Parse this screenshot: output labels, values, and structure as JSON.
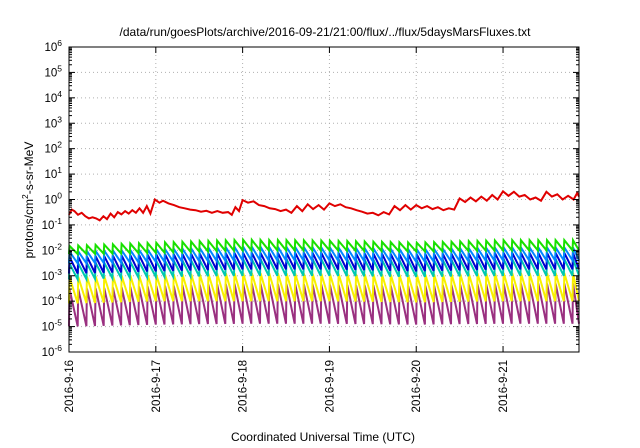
{
  "chart_data": {
    "type": "line",
    "title": "/data/run/goesPlots/archive/2016-09-21/21:00/flux/../flux/5daysMarsFluxes.txt",
    "xlabel": "Coordinated Universal Time (UTC)",
    "ylabel": {
      "base": "protons/cm",
      "sup": "2",
      "rest": "-s-sr-MeV"
    },
    "y_scale": "log",
    "ylim": [
      1e-06,
      1000000.0
    ],
    "y_ticks": [
      {
        "value": 1e-06,
        "base": "10",
        "exp": "-6"
      },
      {
        "value": 1e-05,
        "base": "10",
        "exp": "-5"
      },
      {
        "value": 0.0001,
        "base": "10",
        "exp": "-4"
      },
      {
        "value": 0.001,
        "base": "10",
        "exp": "-3"
      },
      {
        "value": 0.01,
        "base": "10",
        "exp": "-2"
      },
      {
        "value": 0.1,
        "base": "10",
        "exp": "-1"
      },
      {
        "value": 1,
        "base": "10",
        "exp": "0"
      },
      {
        "value": 10,
        "base": "10",
        "exp": "1"
      },
      {
        "value": 100,
        "base": "10",
        "exp": "2"
      },
      {
        "value": 1000,
        "base": "10",
        "exp": "3"
      },
      {
        "value": 10000,
        "base": "10",
        "exp": "4"
      },
      {
        "value": 100000,
        "base": "10",
        "exp": "5"
      },
      {
        "value": 1000000,
        "base": "10",
        "exp": "6"
      }
    ],
    "xlim": [
      "2016-9-16 00:00",
      "2016-9-21 21:00"
    ],
    "x_ticks": [
      "2016-9-16",
      "2016-9-17",
      "2016-9-18",
      "2016-9-19",
      "2016-9-20",
      "2016-9-21"
    ],
    "grid": true,
    "legend": "none",
    "series": [
      {
        "color": "#e00000",
        "points": [
          [
            "2016-9-16 00:00",
            0.25
          ],
          [
            "2016-9-16 00:45",
            0.4
          ],
          [
            "2016-9-16 01:30",
            0.35
          ],
          [
            "2016-9-16 02:30",
            0.25
          ],
          [
            "2016-9-16 03:30",
            0.3
          ],
          [
            "2016-9-16 04:30",
            0.22
          ],
          [
            "2016-9-16 05:30",
            0.18
          ],
          [
            "2016-9-16 06:30",
            0.2
          ],
          [
            "2016-9-16 07:30",
            0.18
          ],
          [
            "2016-9-16 08:30",
            0.15
          ],
          [
            "2016-9-16 09:30",
            0.22
          ],
          [
            "2016-9-16 10:30",
            0.17
          ],
          [
            "2016-9-16 11:30",
            0.28
          ],
          [
            "2016-9-16 12:30",
            0.2
          ],
          [
            "2016-9-16 13:30",
            0.32
          ],
          [
            "2016-9-16 14:30",
            0.26
          ],
          [
            "2016-9-16 15:30",
            0.35
          ],
          [
            "2016-9-16 16:30",
            0.28
          ],
          [
            "2016-9-16 17:30",
            0.38
          ],
          [
            "2016-9-16 18:30",
            0.3
          ],
          [
            "2016-9-16 19:30",
            0.45
          ],
          [
            "2016-9-16 20:30",
            0.3
          ],
          [
            "2016-9-16 21:30",
            0.55
          ],
          [
            "2016-9-16 22:30",
            0.28
          ],
          [
            "2016-9-16 23:45",
            1.0
          ],
          [
            "2016-9-17 01:00",
            0.75
          ],
          [
            "2016-9-17 02:00",
            0.9
          ],
          [
            "2016-9-17 03:30",
            0.7
          ],
          [
            "2016-9-17 05:00",
            0.6
          ],
          [
            "2016-9-17 06:30",
            0.5
          ],
          [
            "2016-9-17 08:00",
            0.45
          ],
          [
            "2016-9-17 09:30",
            0.4
          ],
          [
            "2016-9-17 11:00",
            0.38
          ],
          [
            "2016-9-17 12:30",
            0.33
          ],
          [
            "2016-9-17 14:00",
            0.36
          ],
          [
            "2016-9-17 15:30",
            0.3
          ],
          [
            "2016-9-17 17:00",
            0.35
          ],
          [
            "2016-9-17 18:30",
            0.3
          ],
          [
            "2016-9-17 20:00",
            0.32
          ],
          [
            "2016-9-17 21:00",
            0.25
          ],
          [
            "2016-9-17 22:00",
            0.5
          ],
          [
            "2016-9-17 23:00",
            0.35
          ],
          [
            "2016-9-18 00:00",
            0.95
          ],
          [
            "2016-9-18 01:30",
            0.75
          ],
          [
            "2016-9-18 03:00",
            0.85
          ],
          [
            "2016-9-18 04:30",
            0.6
          ],
          [
            "2016-9-18 06:00",
            0.55
          ],
          [
            "2016-9-18 07:30",
            0.45
          ],
          [
            "2016-9-18 09:00",
            0.42
          ],
          [
            "2016-9-18 10:30",
            0.35
          ],
          [
            "2016-9-18 12:00",
            0.4
          ],
          [
            "2016-9-18 13:30",
            0.3
          ],
          [
            "2016-9-18 15:00",
            0.55
          ],
          [
            "2016-9-18 16:30",
            0.35
          ],
          [
            "2016-9-18 18:00",
            0.65
          ],
          [
            "2016-9-18 19:30",
            0.42
          ],
          [
            "2016-9-18 21:00",
            0.6
          ],
          [
            "2016-9-18 22:30",
            0.4
          ],
          [
            "2016-9-19 00:00",
            0.7
          ],
          [
            "2016-9-19 01:30",
            0.55
          ],
          [
            "2016-9-19 03:00",
            0.65
          ],
          [
            "2016-9-19 04:30",
            0.5
          ],
          [
            "2016-9-19 06:00",
            0.45
          ],
          [
            "2016-9-19 07:30",
            0.38
          ],
          [
            "2016-9-19 09:00",
            0.33
          ],
          [
            "2016-9-19 10:30",
            0.28
          ],
          [
            "2016-9-19 12:00",
            0.3
          ],
          [
            "2016-9-19 13:30",
            0.24
          ],
          [
            "2016-9-19 15:00",
            0.32
          ],
          [
            "2016-9-19 16:30",
            0.26
          ],
          [
            "2016-9-19 18:00",
            0.55
          ],
          [
            "2016-9-19 19:30",
            0.38
          ],
          [
            "2016-9-19 21:00",
            0.6
          ],
          [
            "2016-9-19 22:30",
            0.4
          ],
          [
            "2016-9-20 00:00",
            0.6
          ],
          [
            "2016-9-20 01:30",
            0.45
          ],
          [
            "2016-9-20 03:00",
            0.55
          ],
          [
            "2016-9-20 04:30",
            0.42
          ],
          [
            "2016-9-20 06:00",
            0.5
          ],
          [
            "2016-9-20 07:30",
            0.38
          ],
          [
            "2016-9-20 09:00",
            0.45
          ],
          [
            "2016-9-20 10:30",
            0.4
          ],
          [
            "2016-9-20 12:00",
            1.1
          ],
          [
            "2016-9-20 13:30",
            0.8
          ],
          [
            "2016-9-20 15:00",
            1.2
          ],
          [
            "2016-9-20 16:30",
            0.85
          ],
          [
            "2016-9-20 18:00",
            1.3
          ],
          [
            "2016-9-20 19:30",
            0.9
          ],
          [
            "2016-9-20 21:00",
            1.5
          ],
          [
            "2016-9-20 22:30",
            1.0
          ],
          [
            "2016-9-21 00:00",
            2.1
          ],
          [
            "2016-9-21 01:30",
            1.4
          ],
          [
            "2016-9-21 03:00",
            2.0
          ],
          [
            "2016-9-21 04:30",
            1.3
          ],
          [
            "2016-9-21 06:00",
            1.5
          ],
          [
            "2016-9-21 07:30",
            1.0
          ],
          [
            "2016-9-21 09:00",
            1.2
          ],
          [
            "2016-9-21 10:30",
            0.9
          ],
          [
            "2016-9-21 12:00",
            2.0
          ],
          [
            "2016-9-21 13:30",
            1.3
          ],
          [
            "2016-9-21 15:00",
            1.6
          ],
          [
            "2016-9-21 16:30",
            1.0
          ],
          [
            "2016-9-21 18:00",
            1.4
          ],
          [
            "2016-9-21 19:30",
            1.0
          ],
          [
            "2016-9-21 20:30",
            1.8
          ],
          [
            "2016-9-21 21:00",
            1.3
          ]
        ]
      },
      {
        "color": "#18e000",
        "cycle_hours": 2.4,
        "points": [
          [
            "2016-9-16 00:00",
            0.015
          ],
          [
            "2016-9-17 00:00",
            0.02
          ],
          [
            "2016-9-18 00:00",
            0.026
          ],
          [
            "2016-9-19 00:00",
            0.024
          ],
          [
            "2016-9-20 00:00",
            0.02
          ],
          [
            "2016-9-21 00:00",
            0.025
          ],
          [
            "2016-9-21 21:00",
            0.025
          ]
        ],
        "troughs": [
          [
            "2016-9-16 00:00",
            0.007
          ],
          [
            "2016-9-17 00:00",
            0.008
          ],
          [
            "2016-9-18 00:00",
            0.01
          ],
          [
            "2016-9-19 00:00",
            0.01
          ],
          [
            "2016-9-20 00:00",
            0.009
          ],
          [
            "2016-9-21 00:00",
            0.01
          ],
          [
            "2016-9-21 21:00",
            0.01
          ]
        ]
      },
      {
        "color": "#0088ff",
        "cycle_hours": 2.4,
        "points": [
          [
            "2016-9-16 00:00",
            0.009
          ],
          [
            "2016-9-17 00:00",
            0.011
          ],
          [
            "2016-9-18 00:00",
            0.014
          ],
          [
            "2016-9-19 00:00",
            0.013
          ],
          [
            "2016-9-20 00:00",
            0.011
          ],
          [
            "2016-9-21 00:00",
            0.013
          ],
          [
            "2016-9-21 21:00",
            0.013
          ]
        ],
        "troughs": [
          [
            "2016-9-16 00:00",
            0.003
          ],
          [
            "2016-9-17 00:00",
            0.0035
          ],
          [
            "2016-9-18 00:00",
            0.004
          ],
          [
            "2016-9-19 00:00",
            0.004
          ],
          [
            "2016-9-20 00:00",
            0.0035
          ],
          [
            "2016-9-21 00:00",
            0.004
          ],
          [
            "2016-9-21 21:00",
            0.004
          ]
        ]
      },
      {
        "color": "#0000d0",
        "cycle_hours": 2.4,
        "points": [
          [
            "2016-9-16 00:00",
            0.0055
          ],
          [
            "2016-9-17 00:00",
            0.007
          ],
          [
            "2016-9-18 00:00",
            0.008
          ],
          [
            "2016-9-19 00:00",
            0.008
          ],
          [
            "2016-9-20 00:00",
            0.007
          ],
          [
            "2016-9-21 00:00",
            0.008
          ],
          [
            "2016-9-21 21:00",
            0.008
          ]
        ],
        "troughs": [
          [
            "2016-9-16 00:00",
            0.0012
          ],
          [
            "2016-9-17 00:00",
            0.0015
          ],
          [
            "2016-9-18 00:00",
            0.0018
          ],
          [
            "2016-9-19 00:00",
            0.0018
          ],
          [
            "2016-9-20 00:00",
            0.0015
          ],
          [
            "2016-9-21 00:00",
            0.0018
          ],
          [
            "2016-9-21 21:00",
            0.0018
          ]
        ]
      },
      {
        "color": "#00c8b0",
        "cycle_hours": 2.4,
        "points": [
          [
            "2016-9-16 00:00",
            0.003
          ],
          [
            "2016-9-17 00:00",
            0.0038
          ],
          [
            "2016-9-18 00:00",
            0.0045
          ],
          [
            "2016-9-19 00:00",
            0.0045
          ],
          [
            "2016-9-20 00:00",
            0.004
          ],
          [
            "2016-9-21 00:00",
            0.0045
          ],
          [
            "2016-9-21 21:00",
            0.0045
          ]
        ],
        "troughs": [
          [
            "2016-9-16 00:00",
            0.0007
          ],
          [
            "2016-9-17 00:00",
            0.0009
          ],
          [
            "2016-9-18 00:00",
            0.001
          ],
          [
            "2016-9-19 00:00",
            0.001
          ],
          [
            "2016-9-20 00:00",
            0.0009
          ],
          [
            "2016-9-21 00:00",
            0.001
          ],
          [
            "2016-9-21 21:00",
            0.001
          ]
        ]
      },
      {
        "color": "#f8f000",
        "cycle_hours": 2.4,
        "points": [
          [
            "2016-9-16 00:00",
            0.0009
          ],
          [
            "2016-9-17 00:00",
            0.0011
          ],
          [
            "2016-9-18 00:00",
            0.0013
          ],
          [
            "2016-9-19 00:00",
            0.0012
          ],
          [
            "2016-9-20 00:00",
            0.0011
          ],
          [
            "2016-9-21 00:00",
            0.0013
          ],
          [
            "2016-9-21 21:00",
            0.0013
          ]
        ],
        "troughs": [
          [
            "2016-9-16 00:00",
            8e-05
          ],
          [
            "2016-9-17 00:00",
            0.0001
          ],
          [
            "2016-9-18 00:00",
            0.0001
          ],
          [
            "2016-9-19 00:00",
            0.0001
          ],
          [
            "2016-9-20 00:00",
            9e-05
          ],
          [
            "2016-9-21 00:00",
            0.0001
          ],
          [
            "2016-9-21 21:00",
            0.0001
          ]
        ]
      },
      {
        "color": "#9a3080",
        "cycle_hours": 2.4,
        "points": [
          [
            "2016-9-16 00:00",
            0.0003
          ],
          [
            "2016-9-17 00:00",
            0.0004
          ],
          [
            "2016-9-18 00:00",
            0.0005
          ],
          [
            "2016-9-19 00:00",
            0.00045
          ],
          [
            "2016-9-20 00:00",
            0.0004
          ],
          [
            "2016-9-21 00:00",
            0.0005
          ],
          [
            "2016-9-21 21:00",
            0.0005
          ]
        ],
        "troughs": [
          [
            "2016-9-16 00:00",
            1e-05
          ],
          [
            "2016-9-17 00:00",
            1.2e-05
          ],
          [
            "2016-9-18 00:00",
            1.3e-05
          ],
          [
            "2016-9-19 00:00",
            1.3e-05
          ],
          [
            "2016-9-20 00:00",
            1.2e-05
          ],
          [
            "2016-9-21 00:00",
            1.3e-05
          ],
          [
            "2016-9-21 21:00",
            1.3e-05
          ]
        ]
      }
    ]
  }
}
